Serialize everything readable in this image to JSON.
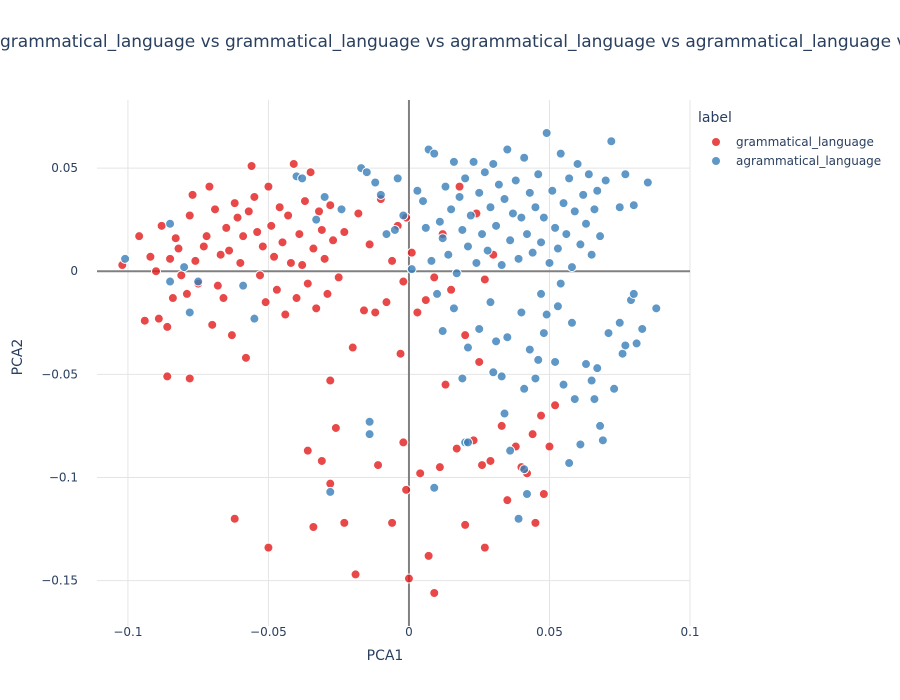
{
  "chart_data": {
    "type": "scatter",
    "title": "grammatical_language vs grammatical_language vs agrammatical_language vs agrammatical_language vs agrammatical_language",
    "xlabel": "PCA1",
    "ylabel": "PCA2",
    "xlim": [
      -0.111,
      0.1
    ],
    "ylim": [
      -0.172,
      0.083
    ],
    "xticks": [
      -0.1,
      -0.05,
      0,
      0.05,
      0.1
    ],
    "xtick_labels": [
      "−0.1",
      "−0.05",
      "0",
      "0.05",
      "0.1"
    ],
    "yticks": [
      -0.15,
      -0.1,
      -0.05,
      0,
      0.05
    ],
    "ytick_labels": [
      "−0.15",
      "−0.1",
      "−0.05",
      "0",
      "0.05"
    ],
    "grid": true,
    "legend": {
      "title": "label",
      "placement": "top-right"
    },
    "series": [
      {
        "name": "grammatical_language",
        "color": "#e41a1c",
        "points": [
          [
            -0.102,
            0.003
          ],
          [
            -0.096,
            0.017
          ],
          [
            -0.094,
            -0.024
          ],
          [
            -0.092,
            0.007
          ],
          [
            -0.09,
            0.0
          ],
          [
            -0.089,
            -0.023
          ],
          [
            -0.088,
            0.022
          ],
          [
            -0.086,
            -0.027
          ],
          [
            -0.085,
            0.006
          ],
          [
            -0.084,
            -0.013
          ],
          [
            -0.083,
            0.016
          ],
          [
            -0.082,
            0.011
          ],
          [
            -0.081,
            -0.002
          ],
          [
            -0.079,
            -0.011
          ],
          [
            -0.078,
            0.027
          ],
          [
            -0.077,
            0.037
          ],
          [
            -0.076,
            0.005
          ],
          [
            -0.075,
            -0.006
          ],
          [
            -0.073,
            0.012
          ],
          [
            -0.072,
            0.017
          ],
          [
            -0.071,
            0.041
          ],
          [
            -0.07,
            -0.026
          ],
          [
            -0.069,
            0.03
          ],
          [
            -0.068,
            -0.007
          ],
          [
            -0.067,
            0.008
          ],
          [
            -0.066,
            -0.013
          ],
          [
            -0.065,
            0.021
          ],
          [
            -0.064,
            0.01
          ],
          [
            -0.063,
            -0.031
          ],
          [
            -0.062,
            0.033
          ],
          [
            -0.061,
            0.026
          ],
          [
            -0.06,
            0.004
          ],
          [
            -0.059,
            0.017
          ],
          [
            -0.058,
            -0.042
          ],
          [
            -0.057,
            0.029
          ],
          [
            -0.056,
            0.051
          ],
          [
            -0.055,
            0.036
          ],
          [
            -0.054,
            0.019
          ],
          [
            -0.053,
            -0.002
          ],
          [
            -0.052,
            0.012
          ],
          [
            -0.051,
            -0.015
          ],
          [
            -0.05,
            0.041
          ],
          [
            -0.049,
            0.022
          ],
          [
            -0.048,
            0.007
          ],
          [
            -0.047,
            -0.009
          ],
          [
            -0.046,
            0.031
          ],
          [
            -0.045,
            0.014
          ],
          [
            -0.044,
            -0.021
          ],
          [
            -0.043,
            0.027
          ],
          [
            -0.042,
            0.004
          ],
          [
            -0.041,
            0.052
          ],
          [
            -0.04,
            -0.013
          ],
          [
            -0.039,
            0.018
          ],
          [
            -0.038,
            0.003
          ],
          [
            -0.037,
            0.034
          ],
          [
            -0.036,
            -0.006
          ],
          [
            -0.035,
            0.048
          ],
          [
            -0.034,
            0.011
          ],
          [
            -0.033,
            -0.018
          ],
          [
            -0.032,
            0.029
          ],
          [
            -0.031,
            0.02
          ],
          [
            -0.03,
            0.006
          ],
          [
            -0.029,
            -0.011
          ],
          [
            -0.028,
            0.032
          ],
          [
            -0.027,
            0.015
          ],
          [
            -0.025,
            -0.003
          ],
          [
            -0.023,
            0.019
          ],
          [
            -0.02,
            -0.037
          ],
          [
            -0.018,
            0.028
          ],
          [
            -0.016,
            -0.019
          ],
          [
            -0.014,
            0.013
          ],
          [
            -0.012,
            -0.02
          ],
          [
            -0.01,
            0.035
          ],
          [
            -0.008,
            -0.015
          ],
          [
            -0.006,
            0.005
          ],
          [
            -0.004,
            0.022
          ],
          [
            -0.003,
            -0.04
          ],
          [
            -0.002,
            -0.005
          ],
          [
            -0.001,
            0.026
          ],
          [
            0.001,
            0.009
          ],
          [
            0.003,
            -0.02
          ],
          [
            0.006,
            -0.014
          ],
          [
            0.009,
            -0.003
          ],
          [
            0.012,
            0.018
          ],
          [
            0.015,
            -0.009
          ],
          [
            0.018,
            0.041
          ],
          [
            0.02,
            -0.031
          ],
          [
            0.024,
            0.028
          ],
          [
            0.025,
            -0.044
          ],
          [
            0.027,
            -0.004
          ],
          [
            0.03,
            0.008
          ],
          [
            -0.028,
            -0.053
          ],
          [
            -0.023,
            -0.122
          ],
          [
            -0.019,
            -0.147
          ],
          [
            -0.036,
            -0.087
          ],
          [
            -0.034,
            -0.124
          ],
          [
            -0.031,
            -0.092
          ],
          [
            -0.028,
            -0.103
          ],
          [
            -0.026,
            -0.076
          ],
          [
            -0.011,
            -0.094
          ],
          [
            -0.006,
            -0.122
          ],
          [
            -0.002,
            -0.083
          ],
          [
            -0.001,
            -0.106
          ],
          [
            0.004,
            -0.098
          ],
          [
            0.007,
            -0.138
          ],
          [
            0.009,
            -0.156
          ],
          [
            0.011,
            -0.095
          ],
          [
            0.013,
            -0.055
          ],
          [
            0.017,
            -0.086
          ],
          [
            0.02,
            -0.123
          ],
          [
            0.023,
            -0.082
          ],
          [
            0.026,
            -0.094
          ],
          [
            0.027,
            -0.134
          ],
          [
            0.029,
            -0.092
          ],
          [
            0.033,
            -0.075
          ],
          [
            0.035,
            -0.111
          ],
          [
            0.038,
            -0.085
          ],
          [
            0.04,
            -0.095
          ],
          [
            0.042,
            -0.098
          ],
          [
            0.044,
            -0.079
          ],
          [
            0.045,
            -0.122
          ],
          [
            0.047,
            -0.07
          ],
          [
            0.048,
            -0.108
          ],
          [
            0.05,
            -0.085
          ],
          [
            0.052,
            -0.065
          ],
          [
            -0.062,
            -0.12
          ],
          [
            -0.05,
            -0.134
          ],
          [
            -0.086,
            -0.051
          ],
          [
            -0.078,
            -0.052
          ],
          [
            0.0,
            -0.149
          ]
        ]
      },
      {
        "name": "agrammatical_language",
        "color": "#377eb8",
        "points": [
          [
            -0.101,
            0.006
          ],
          [
            -0.085,
            0.023
          ],
          [
            -0.085,
            -0.005
          ],
          [
            -0.08,
            0.002
          ],
          [
            -0.078,
            -0.02
          ],
          [
            -0.075,
            -0.005
          ],
          [
            -0.059,
            -0.007
          ],
          [
            -0.055,
            -0.023
          ],
          [
            -0.04,
            0.046
          ],
          [
            -0.038,
            0.045
          ],
          [
            -0.033,
            0.025
          ],
          [
            -0.03,
            0.036
          ],
          [
            -0.024,
            0.03
          ],
          [
            -0.017,
            0.05
          ],
          [
            -0.015,
            0.048
          ],
          [
            -0.012,
            0.043
          ],
          [
            -0.01,
            0.037
          ],
          [
            -0.008,
            0.018
          ],
          [
            -0.005,
            0.02
          ],
          [
            -0.004,
            0.045
          ],
          [
            -0.002,
            0.027
          ],
          [
            0.001,
            0.001
          ],
          [
            0.003,
            0.039
          ],
          [
            0.005,
            0.034
          ],
          [
            0.006,
            0.021
          ],
          [
            0.007,
            0.059
          ],
          [
            0.008,
            0.005
          ],
          [
            0.009,
            0.057
          ],
          [
            0.01,
            -0.011
          ],
          [
            0.011,
            0.024
          ],
          [
            0.012,
            0.016
          ],
          [
            0.013,
            0.041
          ],
          [
            0.014,
            0.008
          ],
          [
            0.015,
            0.03
          ],
          [
            0.016,
            0.053
          ],
          [
            0.017,
            -0.001
          ],
          [
            0.018,
            0.036
          ],
          [
            0.019,
            0.02
          ],
          [
            0.02,
            0.045
          ],
          [
            0.021,
            0.012
          ],
          [
            0.022,
            0.027
          ],
          [
            0.023,
            0.053
          ],
          [
            0.024,
            0.004
          ],
          [
            0.025,
            0.038
          ],
          [
            0.026,
            0.018
          ],
          [
            0.027,
            0.048
          ],
          [
            0.028,
            0.01
          ],
          [
            0.029,
            0.031
          ],
          [
            0.03,
            0.052
          ],
          [
            0.031,
            0.022
          ],
          [
            0.032,
            0.042
          ],
          [
            0.033,
            0.003
          ],
          [
            0.034,
            0.035
          ],
          [
            0.035,
            0.059
          ],
          [
            0.036,
            0.015
          ],
          [
            0.037,
            0.028
          ],
          [
            0.038,
            0.044
          ],
          [
            0.039,
            0.006
          ],
          [
            0.04,
            0.026
          ],
          [
            0.041,
            0.055
          ],
          [
            0.042,
            0.018
          ],
          [
            0.043,
            0.038
          ],
          [
            0.044,
            0.009
          ],
          [
            0.045,
            0.031
          ],
          [
            0.046,
            0.047
          ],
          [
            0.047,
            0.014
          ],
          [
            0.048,
            0.026
          ],
          [
            0.049,
            0.067
          ],
          [
            0.05,
            0.004
          ],
          [
            0.051,
            0.039
          ],
          [
            0.052,
            0.021
          ],
          [
            0.053,
            0.011
          ],
          [
            0.054,
            0.057
          ],
          [
            0.055,
            0.033
          ],
          [
            0.056,
            0.018
          ],
          [
            0.057,
            0.045
          ],
          [
            0.058,
            0.002
          ],
          [
            0.059,
            0.029
          ],
          [
            0.06,
            0.052
          ],
          [
            0.061,
            0.013
          ],
          [
            0.062,
            0.037
          ],
          [
            0.063,
            0.023
          ],
          [
            0.064,
            0.047
          ],
          [
            0.065,
            0.008
          ],
          [
            0.066,
            0.03
          ],
          [
            0.067,
            0.039
          ],
          [
            0.068,
            0.017
          ],
          [
            0.07,
            0.044
          ],
          [
            0.072,
            0.063
          ],
          [
            0.075,
            0.031
          ],
          [
            0.077,
            0.047
          ],
          [
            0.08,
            0.032
          ],
          [
            0.085,
            0.043
          ],
          [
            0.012,
            -0.029
          ],
          [
            0.016,
            -0.018
          ],
          [
            0.019,
            -0.052
          ],
          [
            0.02,
            -0.083
          ],
          [
            0.021,
            -0.037
          ],
          [
            0.025,
            -0.028
          ],
          [
            0.029,
            -0.015
          ],
          [
            0.03,
            -0.049
          ],
          [
            0.031,
            -0.034
          ],
          [
            0.033,
            -0.051
          ],
          [
            0.034,
            -0.069
          ],
          [
            0.035,
            -0.032
          ],
          [
            0.036,
            -0.087
          ],
          [
            0.039,
            -0.12
          ],
          [
            0.04,
            -0.02
          ],
          [
            0.041,
            -0.057
          ],
          [
            0.042,
            -0.108
          ],
          [
            0.043,
            -0.038
          ],
          [
            0.045,
            -0.052
          ],
          [
            0.046,
            -0.043
          ],
          [
            0.047,
            -0.011
          ],
          [
            0.048,
            -0.03
          ],
          [
            0.049,
            -0.021
          ],
          [
            0.052,
            -0.044
          ],
          [
            0.053,
            -0.017
          ],
          [
            0.054,
            -0.006
          ],
          [
            0.055,
            -0.055
          ],
          [
            0.057,
            -0.093
          ],
          [
            0.058,
            -0.025
          ],
          [
            0.059,
            -0.062
          ],
          [
            0.061,
            -0.084
          ],
          [
            0.063,
            -0.045
          ],
          [
            0.065,
            -0.053
          ],
          [
            0.066,
            -0.062
          ],
          [
            0.067,
            -0.047
          ],
          [
            0.068,
            -0.075
          ],
          [
            0.069,
            -0.082
          ],
          [
            0.071,
            -0.03
          ],
          [
            0.073,
            -0.057
          ],
          [
            0.075,
            -0.025
          ],
          [
            0.076,
            -0.04
          ],
          [
            0.077,
            -0.036
          ],
          [
            0.079,
            -0.014
          ],
          [
            0.08,
            -0.011
          ],
          [
            0.081,
            -0.035
          ],
          [
            0.083,
            -0.028
          ],
          [
            0.088,
            -0.018
          ],
          [
            0.009,
            -0.105
          ],
          [
            0.021,
            -0.083
          ],
          [
            0.041,
            -0.096
          ],
          [
            -0.014,
            -0.073
          ],
          [
            -0.014,
            -0.079
          ],
          [
            -0.028,
            -0.107
          ]
        ]
      }
    ]
  }
}
